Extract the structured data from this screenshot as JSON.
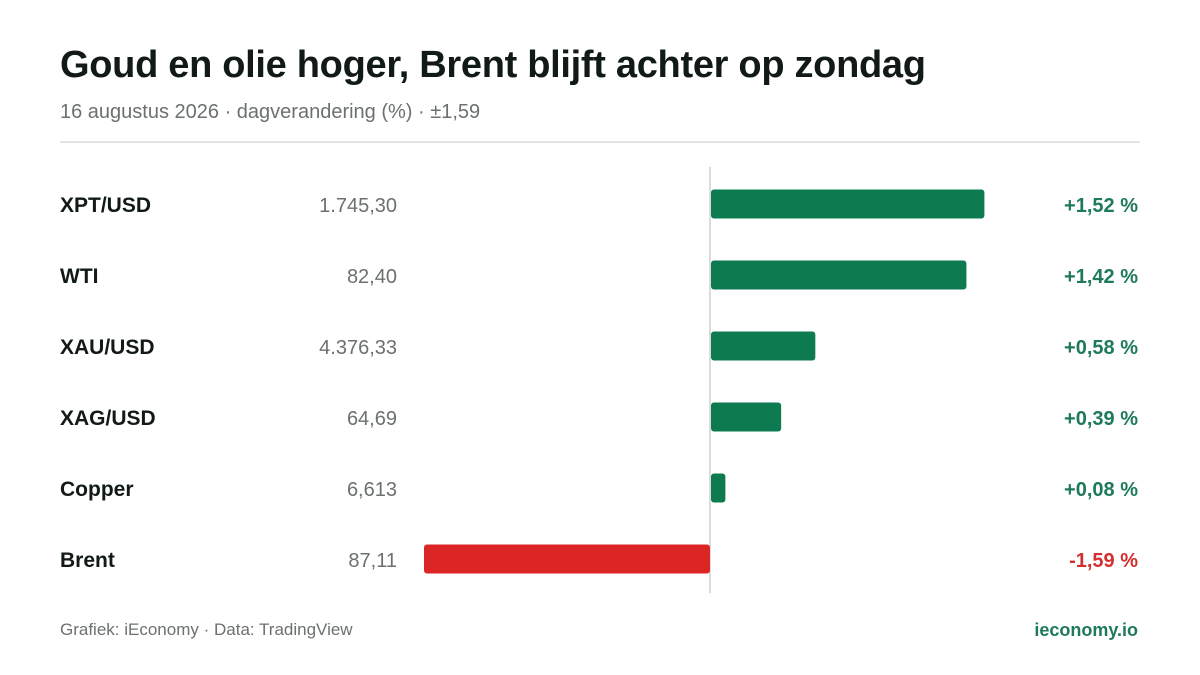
{
  "header": {
    "title": "Goud en olie hoger, Brent blijft achter op zondag",
    "subtitle": "16 augustus 2026 · dagverandering (%) · ±1,59"
  },
  "footer": {
    "source": "Grafiek: iEconomy · Data: TradingView",
    "brand": "ieconomy.io"
  },
  "colors": {
    "positive": "#0e7a50",
    "negative": "#dc2626",
    "positive_text": "#1e7a5a",
    "negative_text": "#d32f2f"
  },
  "chart_data": {
    "type": "bar",
    "orientation": "horizontal",
    "categories": [
      "XPT/USD",
      "WTI",
      "XAU/USD",
      "XAG/USD",
      "Copper",
      "Brent"
    ],
    "prices": [
      "1.745,30",
      "82,40",
      "4.376,33",
      "64,69",
      "6,613",
      "87,11"
    ],
    "values": [
      1.52,
      1.42,
      0.58,
      0.39,
      0.08,
      -1.59
    ],
    "value_labels": [
      "+1,52 %",
      "+1,42 %",
      "+0,58 %",
      "+0,39 %",
      "+0,08 %",
      "-1,59 %"
    ],
    "xlim": [
      -1.59,
      1.59
    ],
    "grid": false
  }
}
